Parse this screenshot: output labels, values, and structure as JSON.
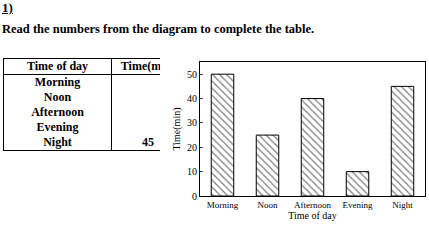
{
  "header": "1)",
  "instruction": "Read the numbers from the diagram to complete the table.",
  "table": {
    "columns": [
      "Time of day",
      "Time(min)"
    ],
    "rows": [
      [
        "Morning",
        null
      ],
      [
        "Noon",
        null
      ],
      [
        "Afternoon",
        null
      ],
      [
        "Evening",
        null
      ],
      [
        "Night",
        45
      ]
    ]
  },
  "chart_data": {
    "type": "bar",
    "x_label": "Time of day",
    "y_label": "Time(min)",
    "categories": [
      "Morning",
      "Noon",
      "Afternoon",
      "Evening",
      "Night"
    ],
    "values": [
      50,
      25,
      40,
      10,
      45
    ],
    "color": "#000000",
    "ylim": [
      0,
      55
    ],
    "yticks": [
      0,
      10,
      20,
      30,
      40,
      50
    ],
    "grid": false
  }
}
